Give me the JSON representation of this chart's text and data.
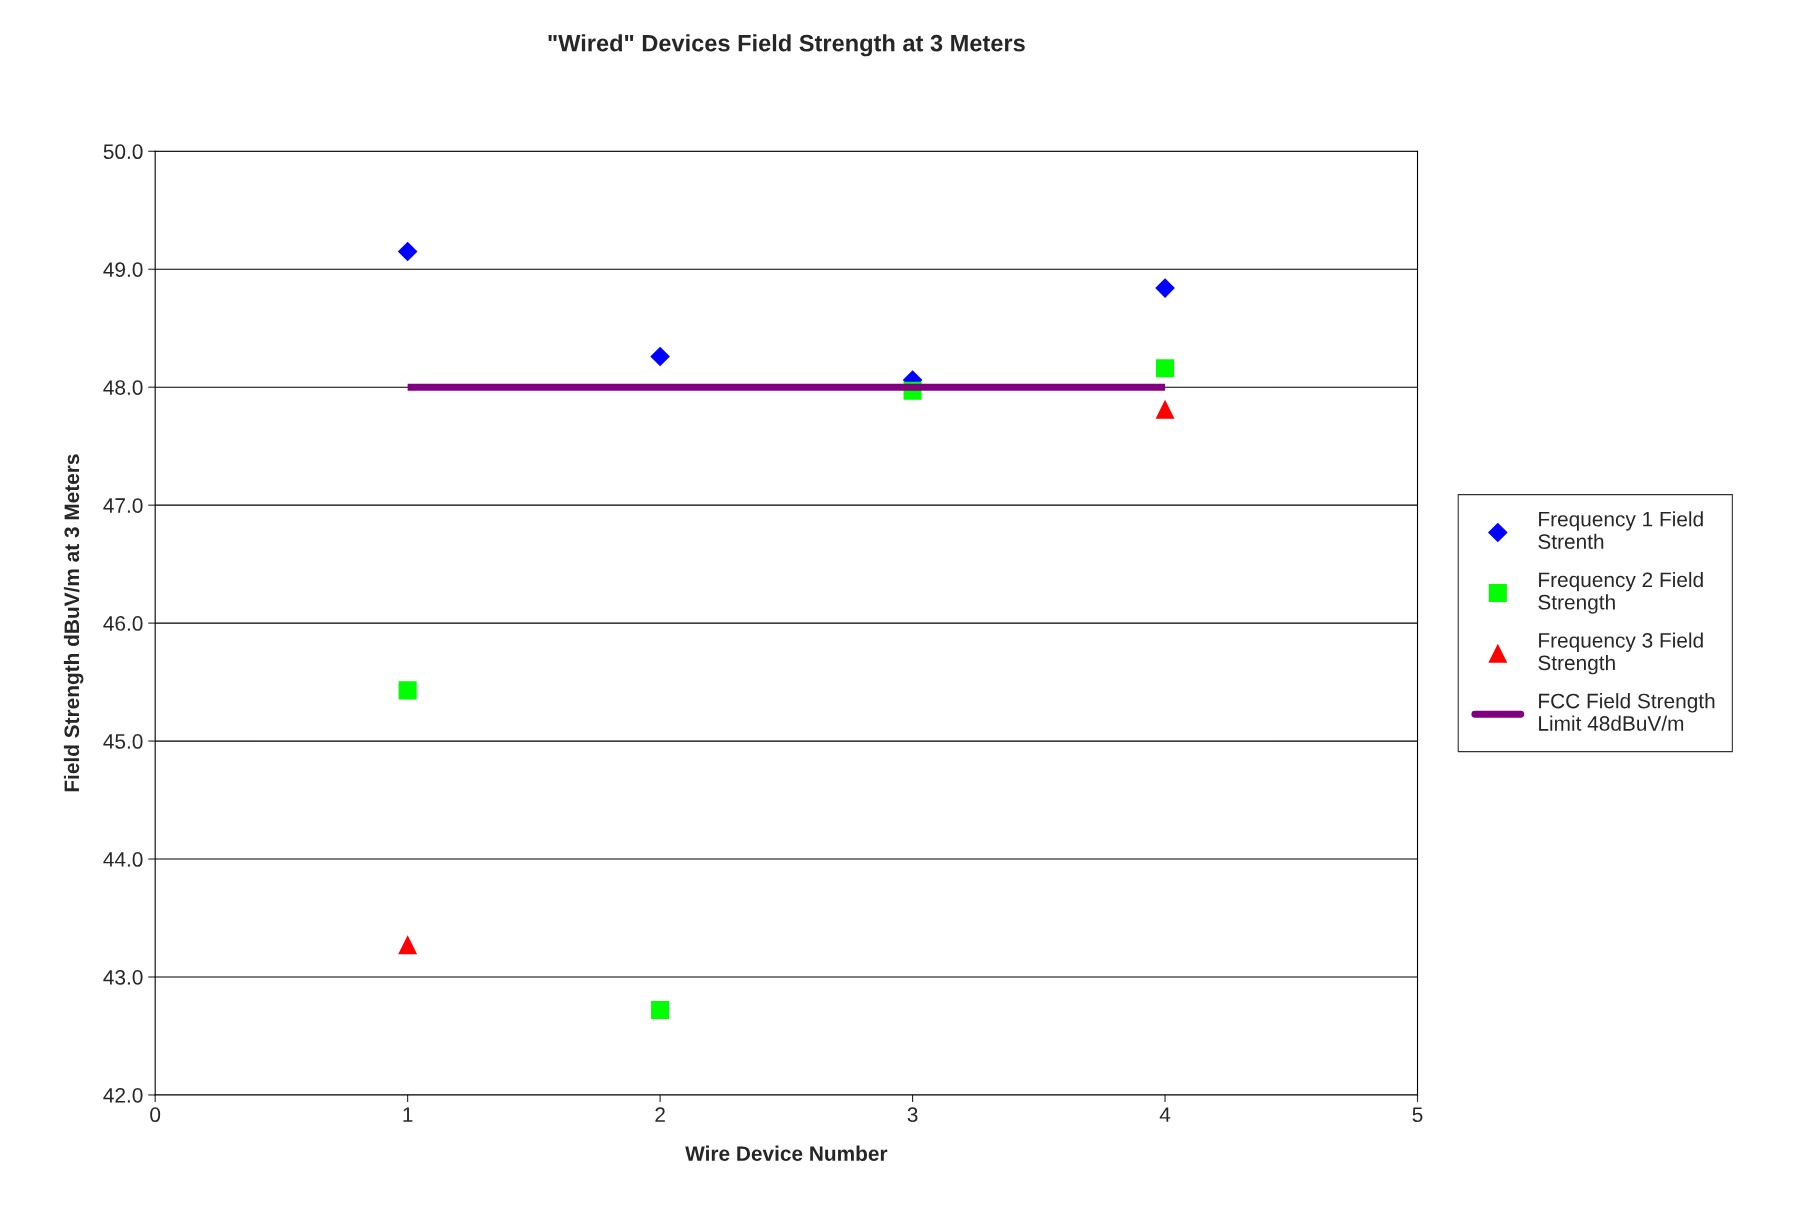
{
  "chart_data": {
    "type": "scatter",
    "title": "\"Wired\" Devices Field Strength at 3 Meters",
    "xlabel": "Wire Device Number",
    "ylabel": "Field Strength dBuV/m at 3 Meters",
    "x": [
      1,
      2,
      3,
      4
    ],
    "series": [
      {
        "name": "Frequency 1 Field Strenth",
        "color": "#0000ff",
        "marker": "diamond",
        "values": [
          49.15,
          48.26,
          48.06,
          48.84
        ]
      },
      {
        "name": "Frequency 2 Field Strength",
        "color": "#00ff00",
        "marker": "square",
        "values": [
          45.43,
          42.72,
          47.97,
          48.16
        ]
      },
      {
        "name": "Frequency 3 Field Strength",
        "color": "#ff0000",
        "marker": "triangle",
        "values": [
          43.27,
          null,
          null,
          47.81
        ]
      },
      {
        "name": "FCC Field Strength Limit 48dBuV/m",
        "type": "line",
        "color": "#800080",
        "marker": "none",
        "x": [
          1,
          4
        ],
        "values": [
          48,
          48
        ]
      }
    ],
    "xlim": [
      0,
      5
    ],
    "xticks": [
      0,
      1,
      2,
      3,
      4,
      5
    ],
    "ylim": [
      42,
      50
    ],
    "yticks": [
      {
        "value": 42,
        "label": "42.0"
      },
      {
        "value": 43,
        "label": "43.0"
      },
      {
        "value": 44,
        "label": "44.0"
      },
      {
        "value": 45,
        "label": "45.0"
      },
      {
        "value": 46,
        "label": "46.0"
      },
      {
        "value": 47,
        "label": "47.0"
      },
      {
        "value": 48,
        "label": "48.0"
      },
      {
        "value": 49,
        "label": "49.0"
      },
      {
        "value": 50,
        "label": "50.0"
      }
    ],
    "grid": "y",
    "legend": "right"
  }
}
